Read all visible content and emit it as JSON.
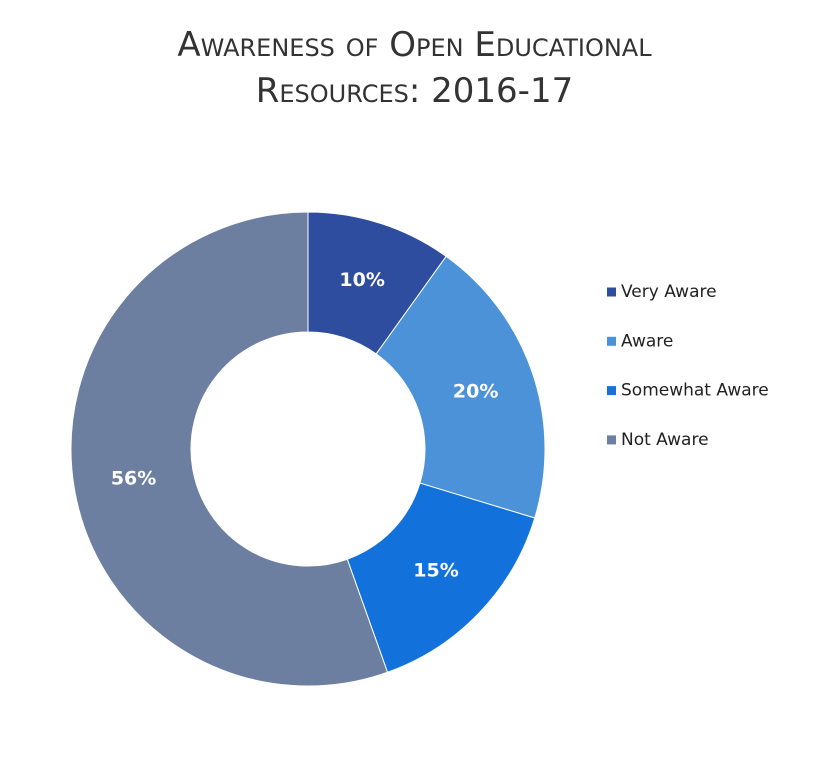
{
  "chart_data": {
    "type": "donut",
    "title": "Awareness of Open Educational Resources: 2016-17",
    "categories": [
      "Very Aware",
      "Aware",
      "Somewhat Aware",
      "Not Aware"
    ],
    "values": [
      10,
      20,
      15,
      56
    ],
    "value_labels": [
      "10%",
      "20%",
      "15%",
      "56%"
    ],
    "colors": [
      "#2f4d9e",
      "#4b92d8",
      "#1271da",
      "#6c7fa1"
    ],
    "legend": "right"
  }
}
